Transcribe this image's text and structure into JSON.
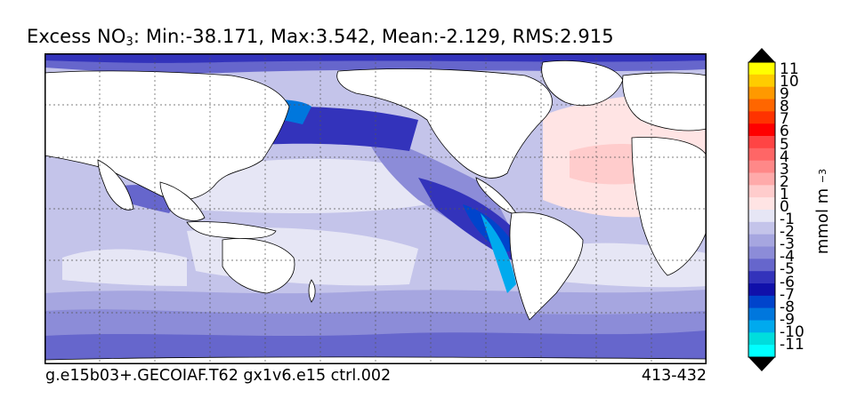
{
  "title": {
    "prefix": "Excess NO",
    "subscript": "3",
    "stats": ": Min:-38.171, Max:3.542, Mean:-2.129, RMS:2.915"
  },
  "footer": {
    "case_name": "g.e15b03+.GECOIAF.T62 gx1v6.e15 ctrl.002",
    "years": "413-432"
  },
  "colorbar": {
    "units_base": "mmol m",
    "units_exp": "−3",
    "tick_labels": [
      "11",
      "10",
      "9",
      "8",
      "7",
      "6",
      "5",
      "4",
      "3",
      "2",
      "1",
      "0",
      "-1",
      "-2",
      "-3",
      "-4",
      "-5",
      "-6",
      "-7",
      "-8",
      "-9",
      "-10",
      "-11"
    ],
    "colors_top_to_bottom": [
      "#ffff00",
      "#ffcc00",
      "#ff9900",
      "#ff6600",
      "#ff3300",
      "#ff0000",
      "#ff4444",
      "#ff6666",
      "#ff8888",
      "#ffaaaa",
      "#ffcccc",
      "#ffe4e4",
      "#e6e6f5",
      "#c4c4ea",
      "#a6a6e0",
      "#8c8cd8",
      "#6666cc",
      "#3333bb",
      "#1010aa",
      "#0044cc",
      "#0077dd",
      "#00aaee",
      "#00dddd",
      "#00ffff"
    ],
    "over_color": "#000000",
    "under_color": "#000000"
  },
  "map_legend_colors": {
    "land": "#ffffff",
    "coast": "#000000",
    "grid": "#555555"
  }
}
